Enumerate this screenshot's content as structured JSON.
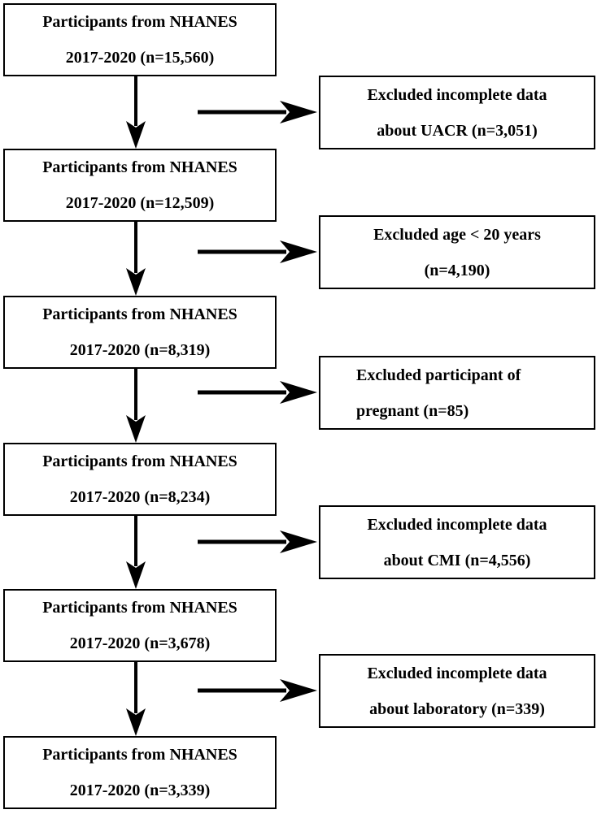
{
  "main_boxes": [
    {
      "lines": [
        "Participants from NHANES",
        "2017-2020 (n=15,560)"
      ]
    },
    {
      "lines": [
        "Participants from NHANES",
        "2017-2020 (n=12,509)"
      ]
    },
    {
      "lines": [
        "Participants from NHANES",
        "2017-2020 (n=8,319)"
      ]
    },
    {
      "lines": [
        "Participants from NHANES",
        "2017-2020 (n=8,234)"
      ]
    },
    {
      "lines": [
        "Participants from NHANES",
        "2017-2020 (n=3,678)"
      ]
    },
    {
      "lines": [
        "Participants from NHANES",
        "2017-2020 (n=3,339)"
      ]
    }
  ],
  "exclusion_boxes": [
    {
      "lines": [
        "Excluded incomplete data",
        "about UACR (n=3,051)"
      ]
    },
    {
      "lines": [
        "Excluded age < 20 years",
        "(n=4,190)"
      ]
    },
    {
      "lines": [
        "Excluded participant of",
        "pregnant (n=85)"
      ]
    },
    {
      "lines": [
        "Excluded incomplete data",
        "about CMI (n=4,556)"
      ]
    },
    {
      "lines": [
        "Excluded incomplete data",
        "about laboratory (n=339)"
      ]
    }
  ]
}
